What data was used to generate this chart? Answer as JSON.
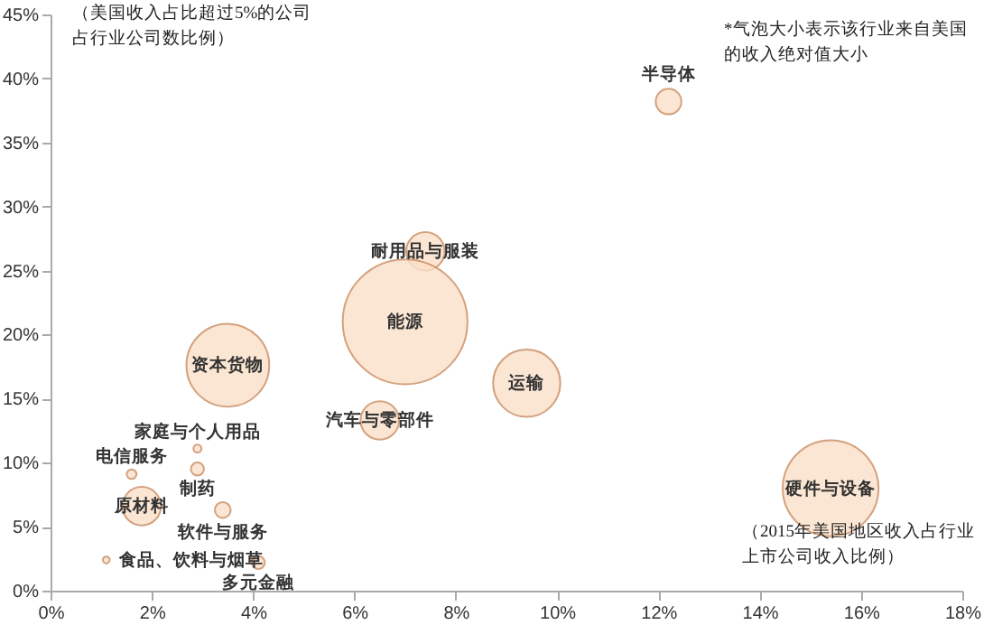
{
  "chart_data": {
    "type": "bubble",
    "xlabel": "（2015年美国地区收入占行业上市公司收入比例）",
    "ylabel": "（美国收入占比超过5%的公司占行业公司数比例）",
    "x": [
      12.2,
      7.4,
      7.0,
      3.5,
      9.4,
      15.4,
      6.5,
      1.8,
      1.6,
      2.9,
      2.9,
      3.4,
      4.1,
      1.1
    ],
    "series": [
      {
        "color": "#fbe1c9",
        "values": [
          38.2,
          26.5,
          21.0,
          17.6,
          16.2,
          8.0,
          13.3,
          6.6,
          9.1,
          11.1,
          9.5,
          6.3,
          2.2,
          2.4
        ],
        "sizes": [
          0.042,
          0.095,
          1,
          0.44,
          0.29,
          0.59,
          0.095,
          0.095,
          0.006,
          0.004,
          0.011,
          0.016,
          0.011,
          0.003
        ]
      }
    ],
    "annotations": [
      "*气泡大小表示该行业来自美国的收入绝对值大小",
      {
        "text": "半导体",
        "x": 12.2,
        "y": 38.2
      },
      {
        "text": "耐用品与服装",
        "x": 7.4,
        "y": 26.5
      },
      {
        "text": "能源",
        "x": 7.0,
        "y": 21.0
      },
      {
        "text": "资本货物",
        "x": 3.5,
        "y": 17.6
      },
      {
        "text": "运输",
        "x": 9.4,
        "y": 16.2
      },
      {
        "text": "硬件与设备",
        "x": 15.4,
        "y": 8.0
      },
      {
        "text": "汽车与零部件",
        "x": 6.5,
        "y": 13.3
      },
      {
        "text": "原材料",
        "x": 1.8,
        "y": 6.6
      },
      {
        "text": "电信服务",
        "x": 1.6,
        "y": 9.1
      },
      {
        "text": "家庭与个人用品",
        "x": 2.9,
        "y": 11.1
      },
      {
        "text": "制药",
        "x": 2.9,
        "y": 9.5
      },
      {
        "text": "软件与服务",
        "x": 3.4,
        "y": 6.3
      },
      {
        "text": "多元金融",
        "x": 4.1,
        "y": 2.2
      },
      {
        "text": "食品、饮料与烟草",
        "x": 1.1,
        "y": 2.4
      }
    ],
    "xlim": [
      0,
      18
    ],
    "xticks": [
      {
        "value": 0,
        "label": "0%"
      },
      {
        "value": 2,
        "label": "2%"
      },
      {
        "value": 4,
        "label": "4%"
      },
      {
        "value": 6,
        "label": "6%"
      },
      {
        "value": 8,
        "label": "8%"
      },
      {
        "value": 10,
        "label": "10%"
      },
      {
        "value": 12,
        "label": "12%"
      },
      {
        "value": 14,
        "label": "14%"
      },
      {
        "value": 16,
        "label": "16%"
      },
      {
        "value": 18,
        "label": "18%"
      }
    ],
    "ylim": [
      0,
      45
    ],
    "yticks": [
      {
        "value": 0,
        "label": "0%"
      },
      {
        "value": 5,
        "label": "5%"
      },
      {
        "value": 10,
        "label": "10%"
      },
      {
        "value": 15,
        "label": "15%"
      },
      {
        "value": 20,
        "label": "20%"
      },
      {
        "value": 25,
        "label": "25%"
      },
      {
        "value": 30,
        "label": "30%"
      },
      {
        "value": 35,
        "label": "35%"
      },
      {
        "value": 40,
        "label": "40%"
      },
      {
        "value": 45,
        "label": "45%"
      }
    ],
    "grid": false
  }
}
